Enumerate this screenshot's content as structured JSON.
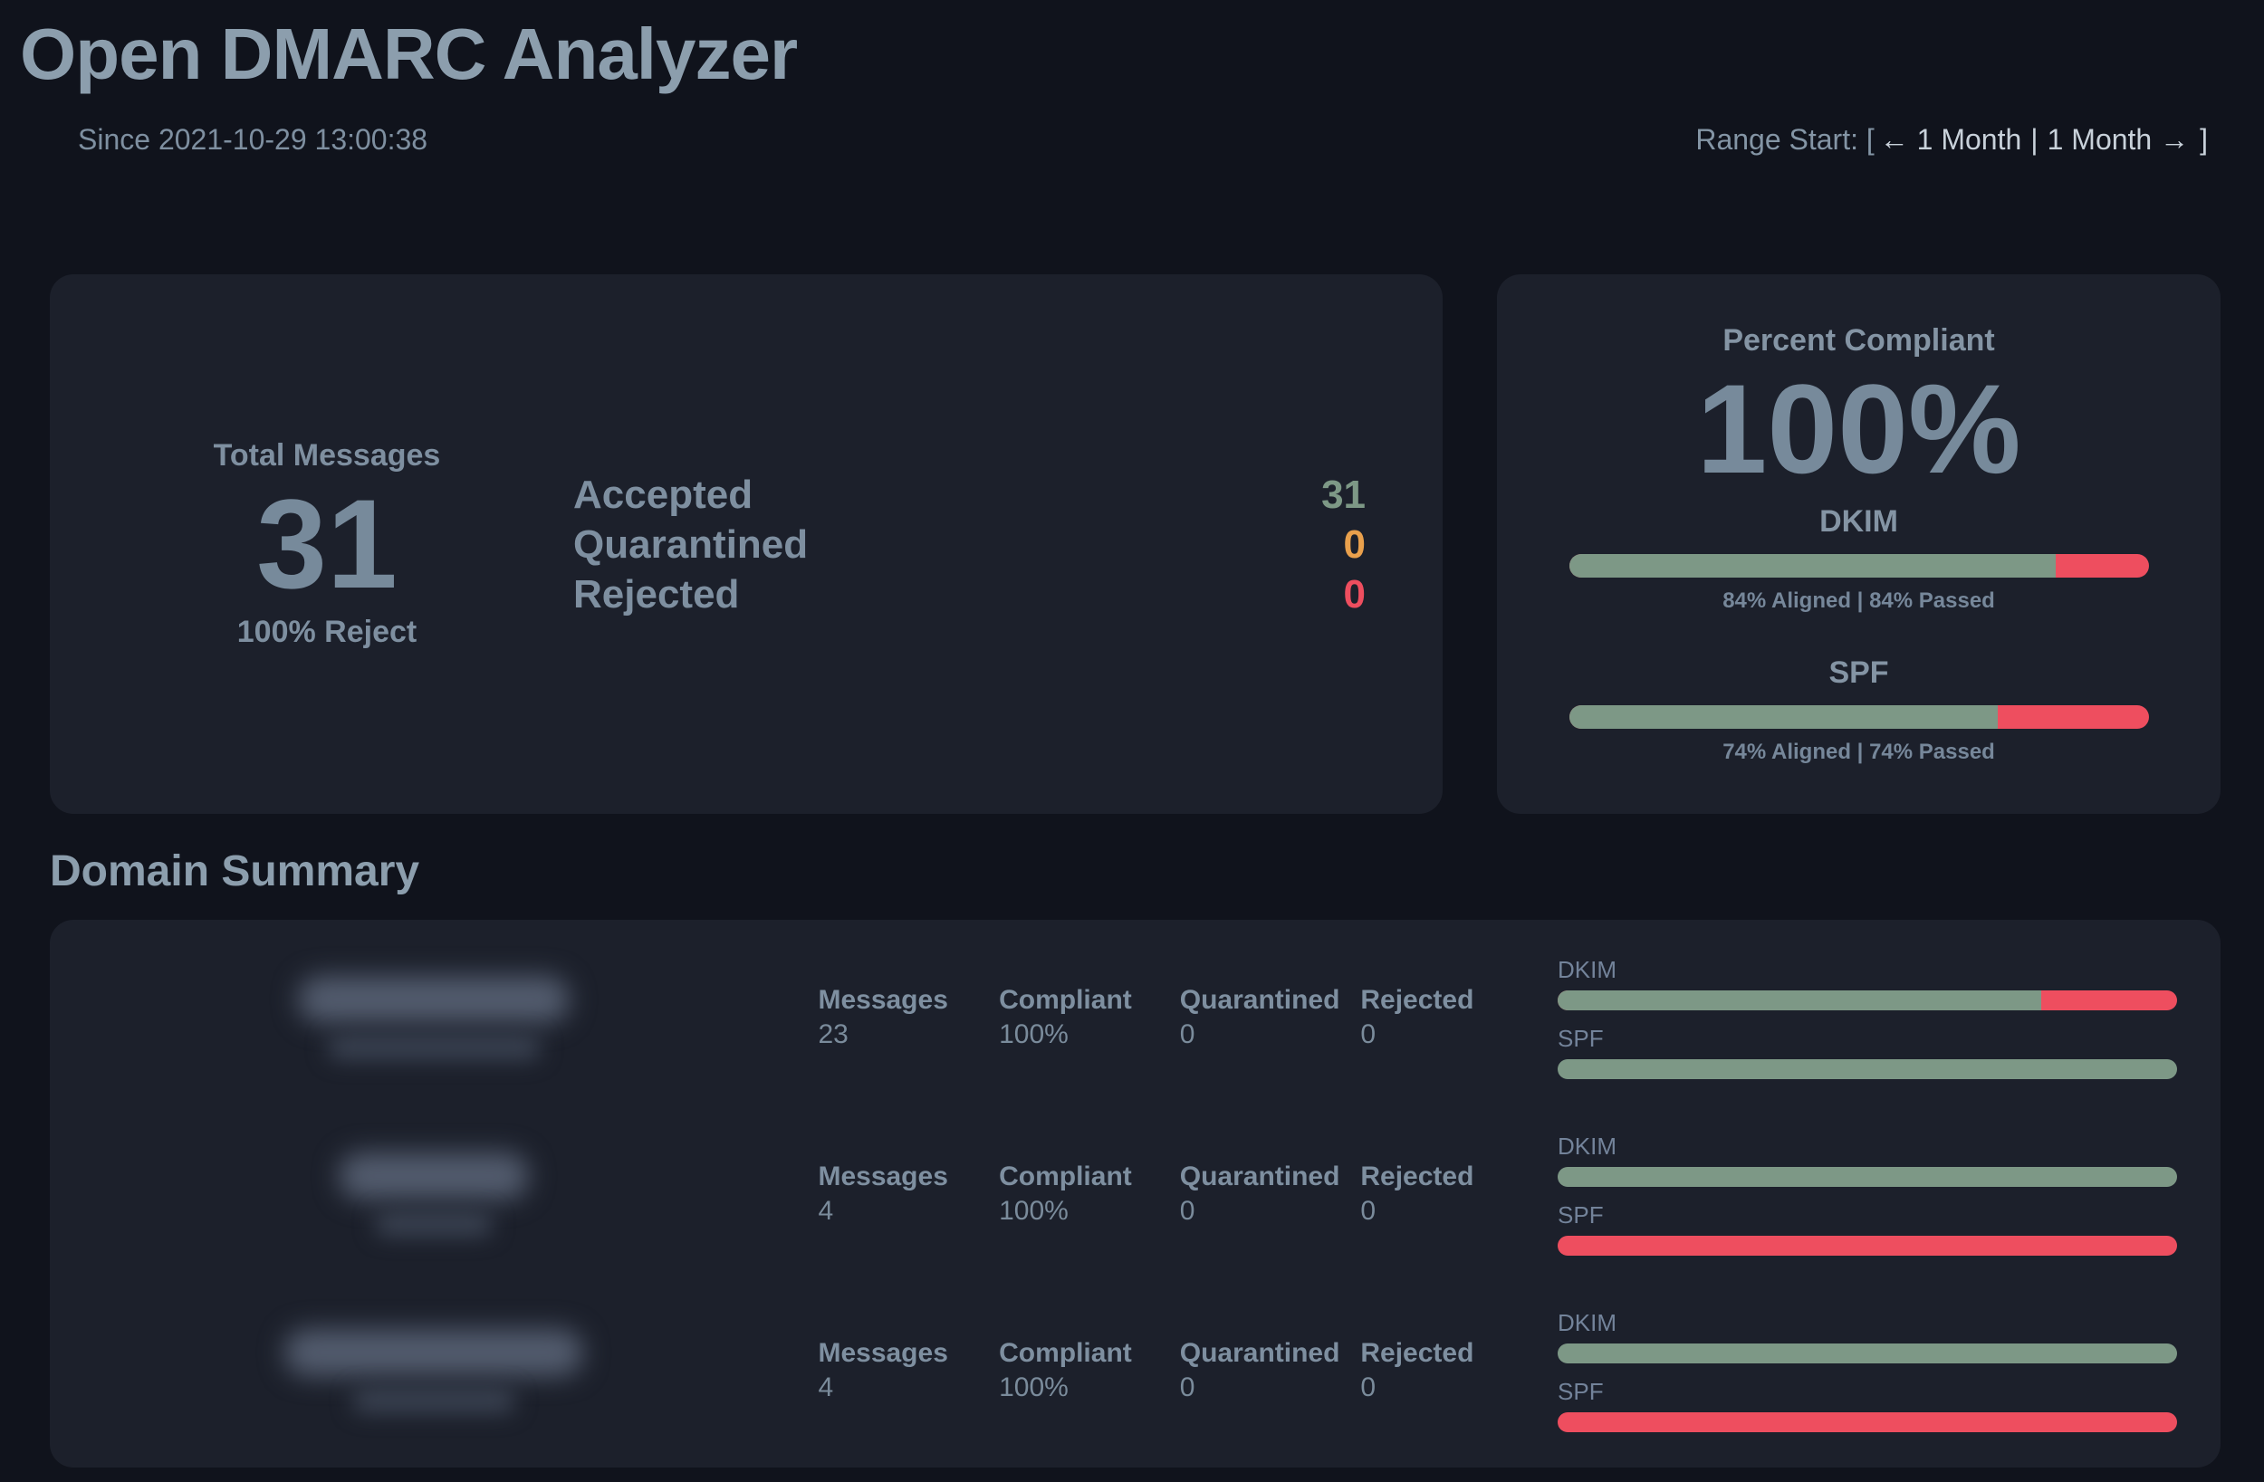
{
  "header": {
    "title": "Open DMARC Analyzer",
    "since": "Since 2021-10-29 13:00:38",
    "range": {
      "prefix": "Range Start: [",
      "prev": "← 1 Month",
      "separator": "|",
      "next": "1 Month →",
      "suffix": "]"
    }
  },
  "totals": {
    "label": "Total Messages",
    "value": "31",
    "policy": "100% Reject",
    "dispositions": [
      {
        "label": "Accepted",
        "value": "31",
        "color": "#7d9886"
      },
      {
        "label": "Quarantined",
        "value": "0",
        "color": "#e9a04c"
      },
      {
        "label": "Rejected",
        "value": "0",
        "color": "#ee4e5f"
      }
    ]
  },
  "compliance": {
    "title": "Percent Compliant",
    "value": "100%",
    "metrics": [
      {
        "label": "DKIM",
        "percent": 84,
        "caption": "84% Aligned | 84% Passed"
      },
      {
        "label": "SPF",
        "percent": 74,
        "caption": "74% Aligned | 74% Passed"
      }
    ]
  },
  "domain_summary": {
    "title": "Domain Summary",
    "rows": [
      {
        "domain_redacted": true,
        "stats": [
          {
            "label": "Messages",
            "value": "23"
          },
          {
            "label": "Compliant",
            "value": "100%"
          },
          {
            "label": "Quarantined",
            "value": "0"
          },
          {
            "label": "Rejected",
            "value": "0"
          }
        ],
        "dkim": {
          "label": "DKIM",
          "percent": 78
        },
        "spf": {
          "label": "SPF",
          "percent": 100
        }
      },
      {
        "domain_redacted": true,
        "stats": [
          {
            "label": "Messages",
            "value": "4"
          },
          {
            "label": "Compliant",
            "value": "100%"
          },
          {
            "label": "Quarantined",
            "value": "0"
          },
          {
            "label": "Rejected",
            "value": "0"
          }
        ],
        "dkim": {
          "label": "DKIM",
          "percent": 100
        },
        "spf": {
          "label": "SPF",
          "percent": 0
        }
      },
      {
        "domain_redacted": true,
        "stats": [
          {
            "label": "Messages",
            "value": "4"
          },
          {
            "label": "Compliant",
            "value": "100%"
          },
          {
            "label": "Quarantined",
            "value": "0"
          },
          {
            "label": "Rejected",
            "value": "0"
          }
        ],
        "dkim": {
          "label": "DKIM",
          "percent": 100
        },
        "spf": {
          "label": "SPF",
          "percent": 0
        }
      }
    ]
  },
  "colors": {
    "background": "#10131c",
    "card": "#1c202b",
    "heading": "#8c9ead",
    "label": "#7e8fa0",
    "value": "#778a9b",
    "green": "#7d9886",
    "red": "#ee4e5f",
    "orange": "#e9a04c",
    "link": "#c8d1da"
  }
}
